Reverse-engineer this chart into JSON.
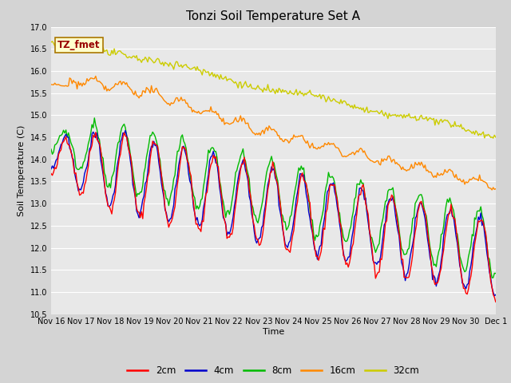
{
  "title": "Tonzi Soil Temperature Set A",
  "xlabel": "Time",
  "ylabel": "Soil Temperature (C)",
  "ylim": [
    10.5,
    17.0
  ],
  "fig_bg": "#d4d4d4",
  "plot_bg": "#e8e8e8",
  "label_box_text": "TZ_fmet",
  "label_box_bg": "#ffffcc",
  "label_box_edge": "#aa7700",
  "label_text_color": "#990000",
  "series_colors": {
    "2cm": "#ff0000",
    "4cm": "#0000cc",
    "8cm": "#00bb00",
    "16cm": "#ff8800",
    "32cm": "#cccc00"
  },
  "grid_color": "#ffffff",
  "title_fontsize": 11,
  "axis_label_fontsize": 8,
  "tick_fontsize": 7
}
